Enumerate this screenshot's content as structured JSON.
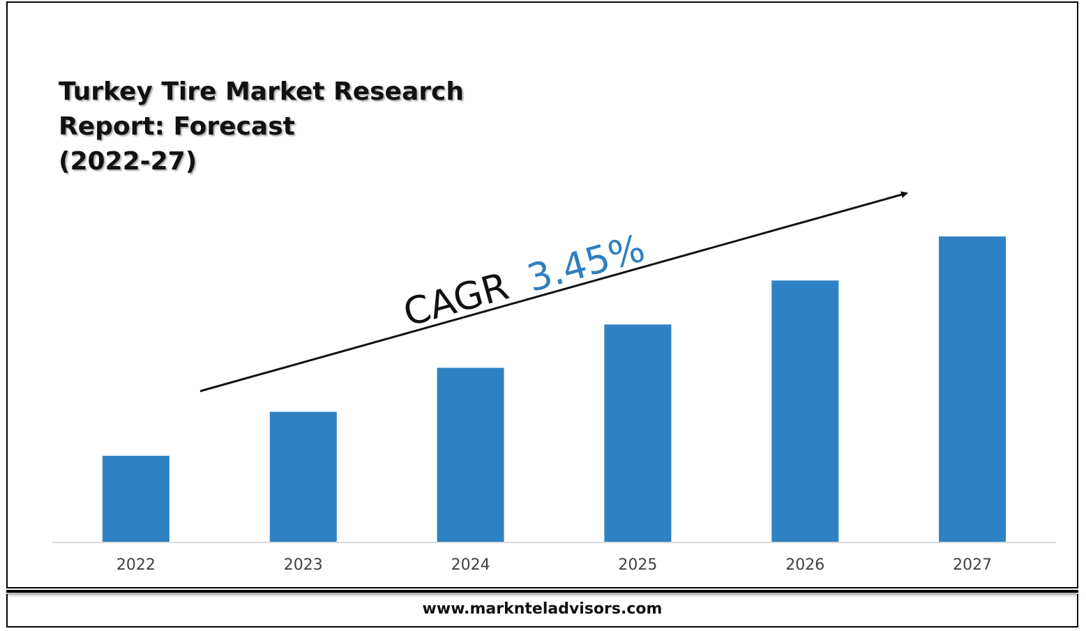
{
  "title_lines": [
    "Turkey Tire Market Research",
    "Report: Forecast",
    "(2022-27)"
  ],
  "cagr": {
    "prefix": "CAGR",
    "value": "3.45%",
    "value_color": "#2e7fbf"
  },
  "footer": {
    "url": "www.marknteladvisors.com"
  },
  "colors": {
    "bar": "#2e82c3",
    "axis": "#d9d9d9",
    "tick_text": "#404040"
  },
  "chart_data": {
    "type": "bar",
    "title": "Turkey Tire Market Research Report: Forecast (2022-27)",
    "categories": [
      "2022",
      "2023",
      "2024",
      "2025",
      "2026",
      "2027"
    ],
    "values": [
      130,
      196,
      262,
      327,
      393,
      459
    ],
    "ylim": [
      0,
      500
    ],
    "xlabel": "",
    "ylabel": "",
    "grid": false,
    "legend": "none"
  }
}
